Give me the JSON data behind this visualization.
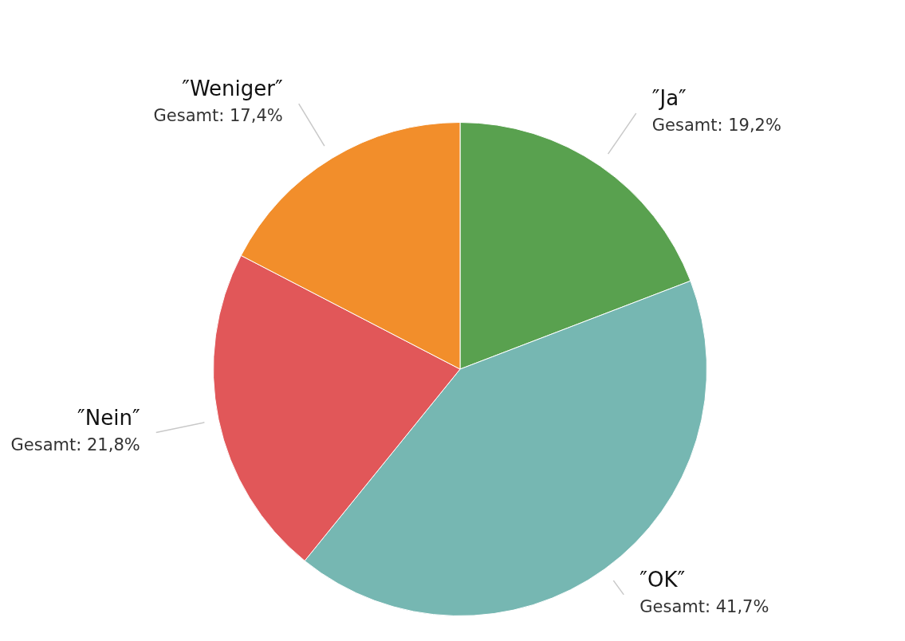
{
  "chart_data": {
    "type": "pie",
    "categories": [
      "″Ja″",
      "″OK″",
      "″Nein″",
      "″Weniger″"
    ],
    "values": [
      19.2,
      41.7,
      21.8,
      17.4
    ],
    "colors": [
      "#59a14f",
      "#76b7b2",
      "#e15759",
      "#f28e2b"
    ],
    "value_labels": [
      "Gesamt: 19,2%",
      "Gesamt: 41,7%",
      "Gesamt: 21,8%",
      "Gesamt: 17,4%"
    ],
    "legend": false
  }
}
